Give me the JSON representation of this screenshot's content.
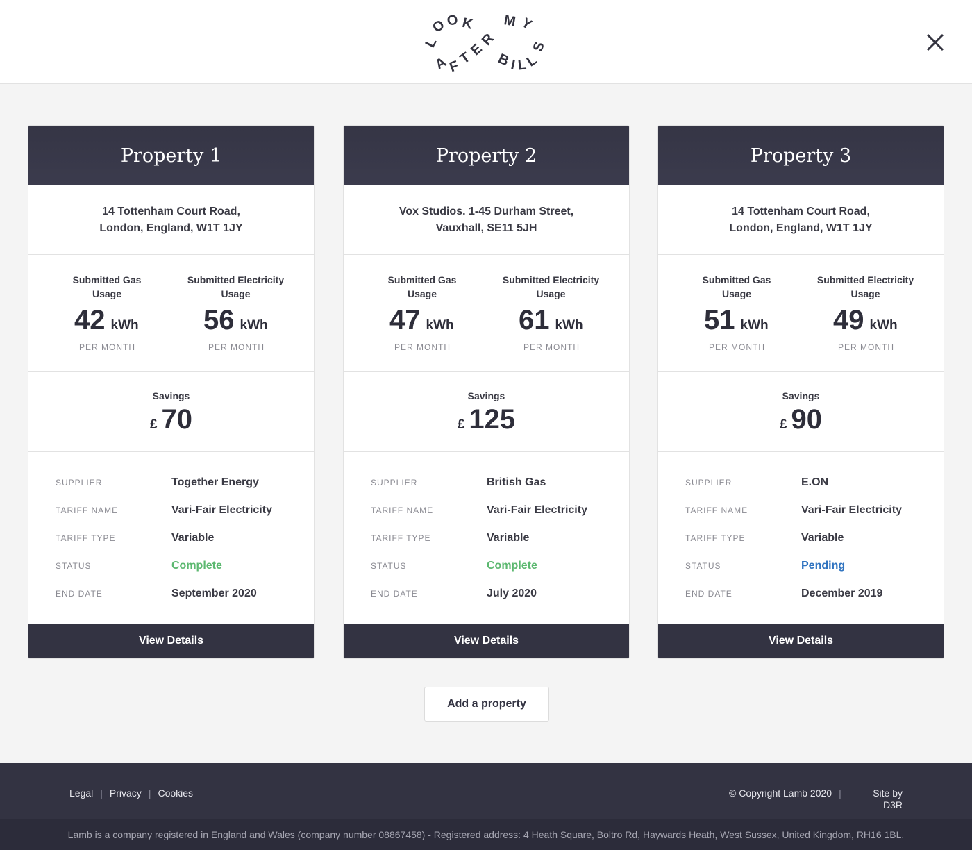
{
  "header": {
    "logo_text": "LOOK AFTER MY BILLS",
    "logo_words": [
      "LOOK",
      "MY",
      "AFTER",
      "BILLS"
    ]
  },
  "common": {
    "gas_label": "Submitted Gas Usage",
    "elec_label": "Submitted Electricity Usage",
    "unit": "kWh",
    "per_month": "PER MONTH",
    "savings_label": "Savings",
    "currency": "£",
    "supplier_key": "SUPPLIER",
    "tariff_name_key": "TARIFF NAME",
    "tariff_type_key": "TARIFF TYPE",
    "status_key": "STATUS",
    "end_date_key": "END DATE",
    "view_details": "View Details"
  },
  "properties": [
    {
      "title": "Property 1",
      "address_line1": "14 Tottenham Court Road,",
      "address_line2": "London, England, W1T 1JY",
      "gas": "42",
      "electricity": "56",
      "savings": "70",
      "supplier": "Together Energy",
      "tariff_name": "Vari-Fair Electricity",
      "tariff_type": "Variable",
      "status": "Complete",
      "end_date": "September 2020"
    },
    {
      "title": "Property 2",
      "address_line1": "Vox Studios. 1-45 Durham Street,",
      "address_line2": "Vauxhall, SE11 5JH",
      "gas": "47",
      "electricity": "61",
      "savings": "125",
      "supplier": "British Gas",
      "tariff_name": "Vari-Fair Electricity",
      "tariff_type": "Variable",
      "status": "Complete",
      "end_date": "July 2020"
    },
    {
      "title": "Property 3",
      "address_line1": "14 Tottenham Court Road,",
      "address_line2": "London, England, W1T 1JY",
      "gas": "51",
      "electricity": "49",
      "savings": "90",
      "supplier": "E.ON",
      "tariff_name": "Vari-Fair Electricity",
      "tariff_type": "Variable",
      "status": "Pending",
      "end_date": "December 2019"
    }
  ],
  "add_property": "Add a property",
  "footer": {
    "links": [
      "Legal",
      "Privacy",
      "Cookies"
    ],
    "copyright": "© Copyright Lamb 2020",
    "site_by": "Site by D3R",
    "registration": "Lamb is a company registered in England and Wales (company number 08867458) - Registered address: 4 Heath Square, Boltro Rd, Haywards Heath, West Sussex, United Kingdom, RH16 1BL."
  },
  "colors": {
    "card_header": "#353545",
    "status_complete": "#5cb870",
    "status_pending": "#2f73c0",
    "footer": "#333342"
  }
}
